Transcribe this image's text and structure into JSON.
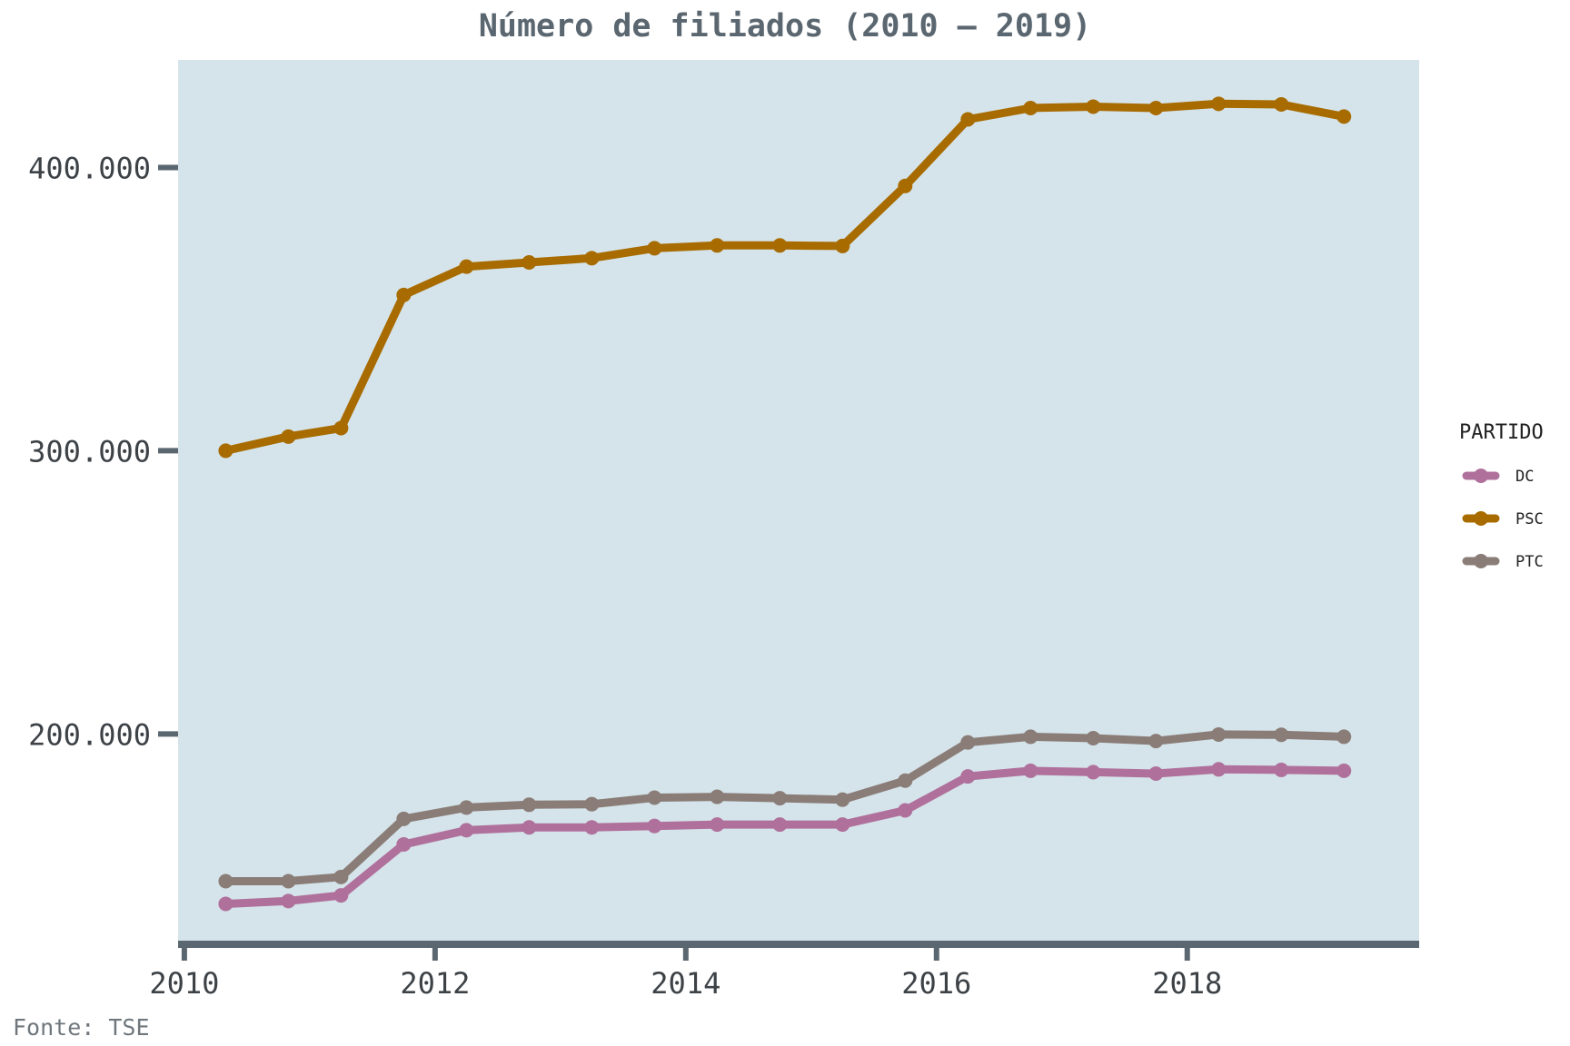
{
  "title": "Número de filiados (2010 – 2019)",
  "caption": "Fonte: TSE",
  "colors": {
    "panel_background": "#d5e4ea",
    "axis": "#5b6770",
    "DC": "#b0709c",
    "PSC": "#a86b00",
    "PTC": "#8a7d78"
  },
  "chart_data": {
    "type": "line",
    "title": "Número de filiados (2010 – 2019)",
    "xlabel": "",
    "ylabel": "",
    "xlim": [
      2009.95,
      2019.85
    ],
    "ylim": [
      127000,
      438000
    ],
    "x_ticks": [
      2010,
      2012,
      2014,
      2016,
      2018
    ],
    "x_tick_labels": [
      "2010",
      "2012",
      "2014",
      "2016",
      "2018"
    ],
    "y_ticks": [
      200000,
      300000,
      400000
    ],
    "y_tick_labels": [
      "200.000",
      "300.000",
      "400.000"
    ],
    "grid": false,
    "legend_title": "PARTIDO",
    "legend_position": "right",
    "x": [
      2010.33,
      2010.83,
      2011.25,
      2011.75,
      2012.25,
      2012.75,
      2013.25,
      2013.75,
      2014.25,
      2014.75,
      2015.25,
      2015.75,
      2016.25,
      2016.75,
      2017.25,
      2017.75,
      2018.25,
      2018.75,
      2019.25
    ],
    "series": [
      {
        "name": "DC",
        "values": [
          140000,
          141000,
          143000,
          161000,
          166000,
          167000,
          167000,
          167500,
          168000,
          168000,
          168000,
          173000,
          185000,
          187000,
          186500,
          186000,
          187500,
          187300,
          187000
        ]
      },
      {
        "name": "PSC",
        "values": [
          300000,
          305000,
          308000,
          355000,
          365000,
          366500,
          368000,
          371500,
          372500,
          372500,
          372300,
          393500,
          417000,
          421000,
          421500,
          421000,
          422500,
          422300,
          418000
        ]
      },
      {
        "name": "PTC",
        "values": [
          148000,
          148000,
          149500,
          170000,
          174000,
          175000,
          175200,
          177500,
          177800,
          177300,
          176800,
          183500,
          197000,
          199000,
          198500,
          197500,
          199800,
          199700,
          199000
        ]
      }
    ]
  }
}
